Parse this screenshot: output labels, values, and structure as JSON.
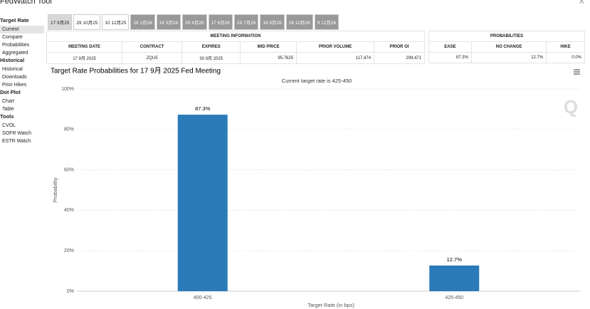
{
  "header": {
    "title": "FedWatch Tool",
    "close": "X"
  },
  "sidebar": [
    {
      "heading": "Target Rate",
      "items": [
        "Current",
        "Compare",
        "Probabilities",
        "Aggregated"
      ]
    },
    {
      "heading": "Historical",
      "items": [
        "Historical",
        "Downloads",
        "Prior Hikes"
      ]
    },
    {
      "heading": "Dot Plot",
      "items": [
        "Chart",
        "Table"
      ]
    },
    {
      "heading": "Tools",
      "items": [
        "CVOL",
        "SOFR Watch",
        "ESTR Watch"
      ]
    }
  ],
  "tabs": [
    "17 9月25",
    "29 10月25",
    "10 12月25",
    "28 1月26",
    "18 3月26",
    "29 4月26",
    "17 6月26",
    "29 7月26",
    "16 9月26",
    "28 10月26",
    "9 12月26"
  ],
  "meeting_info": {
    "title": "MEETING INFORMATION",
    "columns": [
      "MEETING DATE",
      "CONTRACT",
      "EXPIRES",
      "MID PRICE",
      "PRIOR VOLUME",
      "PRIOR OI"
    ],
    "row": [
      "17 9月 2025",
      "ZQU5",
      "30 9月 2025",
      "95.7625",
      "117,474",
      "299,471"
    ]
  },
  "probabilities": {
    "title": "PROBABILITIES",
    "columns": [
      "EASE",
      "NO CHANGE",
      "HIKE"
    ],
    "row": [
      "87.3%",
      "12.7%",
      "0.0%"
    ]
  },
  "chart_data": {
    "type": "bar",
    "title": "Target Rate Probabilities for 17 9月 2025 Fed Meeting",
    "subtitle": "Current target rate is 425-450",
    "x_label": "Target Rate (in bps)",
    "y_label": "Probability",
    "categories": [
      "400-425",
      "425-450"
    ],
    "values": [
      87.3,
      12.7
    ],
    "value_labels": [
      "87.3%",
      "12.7%"
    ],
    "color": "#2b7bb9",
    "ylim": [
      0,
      100
    ],
    "yticks": [
      {
        "value": 0,
        "label": "0%"
      },
      {
        "value": 20,
        "label": "20%"
      },
      {
        "value": 40,
        "label": "40%"
      },
      {
        "value": 60,
        "label": "60%"
      },
      {
        "value": 80,
        "label": "80%"
      },
      {
        "value": 100,
        "label": "100%"
      }
    ],
    "grid": true
  }
}
